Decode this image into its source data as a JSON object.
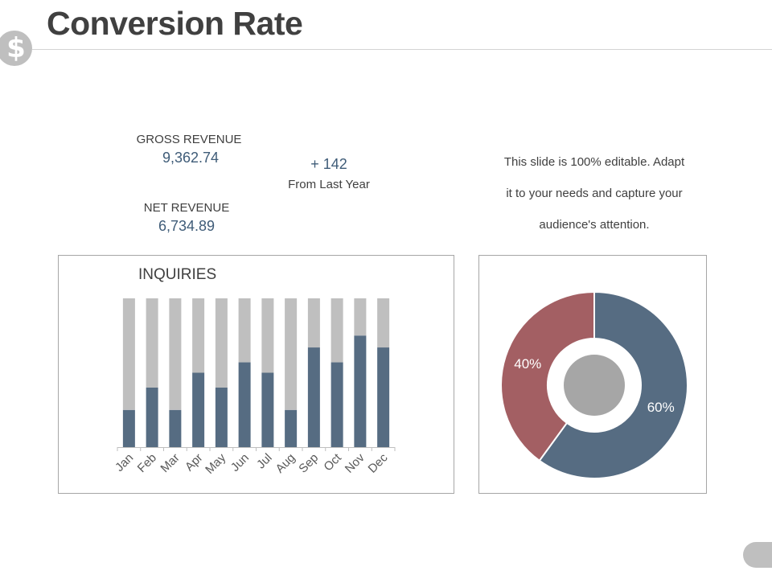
{
  "header": {
    "title": "Conversion Rate",
    "badge_icon": "dollar-icon",
    "badge_symbol": "$"
  },
  "metrics": {
    "gross_label": "GROSS REVENUE",
    "gross_value": "9,362.74",
    "net_label": "NET REVENUE",
    "net_value": "6,734.89",
    "change_value": "+ 142",
    "change_label": "From Last Year"
  },
  "description": {
    "line1": "This slide is 100% editable. Adapt",
    "line2": "it to your needs and capture your",
    "line3": "audience's attention."
  },
  "colors": {
    "primary": "#566c82",
    "track": "#bfbfbf",
    "secondary": "#a35f63",
    "center": "#a6a6a6"
  },
  "chart_data": [
    {
      "type": "bar",
      "stacked": true,
      "title": "INQUIRIES",
      "categories": [
        "Jan",
        "Feb",
        "Mar",
        "Apr",
        "May",
        "Jun",
        "Jul",
        "Aug",
        "Sep",
        "Oct",
        "Nov",
        "Dec"
      ],
      "series": [
        {
          "values": [
            25,
            40,
            25,
            50,
            40,
            57,
            50,
            25,
            67,
            57,
            75,
            67
          ]
        },
        {
          "values": [
            75,
            60,
            75,
            50,
            60,
            43,
            50,
            75,
            33,
            43,
            25,
            33
          ]
        }
      ],
      "ylim": [
        0,
        100
      ],
      "grid": false,
      "legend": "none"
    },
    {
      "type": "pie",
      "donut": true,
      "labels": [
        "60%",
        "40%"
      ],
      "values": [
        60,
        40
      ]
    }
  ]
}
